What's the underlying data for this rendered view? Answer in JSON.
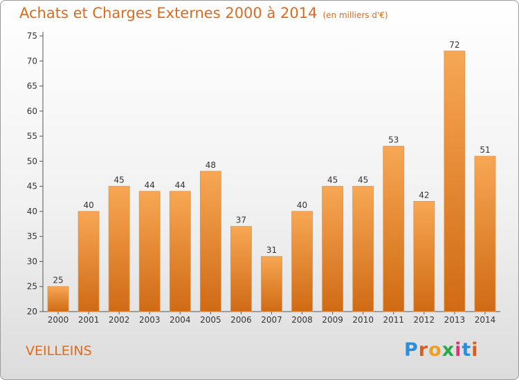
{
  "title": "Achats et Charges Externes 2000 à 2014",
  "subtitle": "(en milliers d'€)",
  "commune": "VEILLEINS",
  "logo": {
    "letters": [
      "P",
      "r",
      "o",
      "x",
      "i",
      "t",
      "i"
    ],
    "colors": [
      "#2a8fd8",
      "#e05a1a",
      "#f0a020",
      "#2aa84a",
      "#e0307a",
      "#2a8fd8",
      "#e05a1a"
    ]
  },
  "colors": {
    "bar_top": "#f7a754",
    "bar_bottom": "#d06a14",
    "title": "#e06a1c"
  },
  "chart_data": {
    "type": "bar",
    "categories": [
      "2000",
      "2001",
      "2002",
      "2003",
      "2004",
      "2005",
      "2006",
      "2007",
      "2008",
      "2009",
      "2010",
      "2011",
      "2012",
      "2013",
      "2014"
    ],
    "values": [
      25,
      40,
      45,
      44,
      44,
      48,
      37,
      31,
      40,
      45,
      45,
      53,
      42,
      72,
      51
    ],
    "title": "Achats et Charges Externes 2000 à 2014",
    "xlabel": "",
    "ylabel": "",
    "ylim": [
      20,
      75
    ],
    "yticks": [
      20,
      25,
      30,
      35,
      40,
      45,
      50,
      55,
      60,
      65,
      70,
      75
    ],
    "grid": false
  }
}
